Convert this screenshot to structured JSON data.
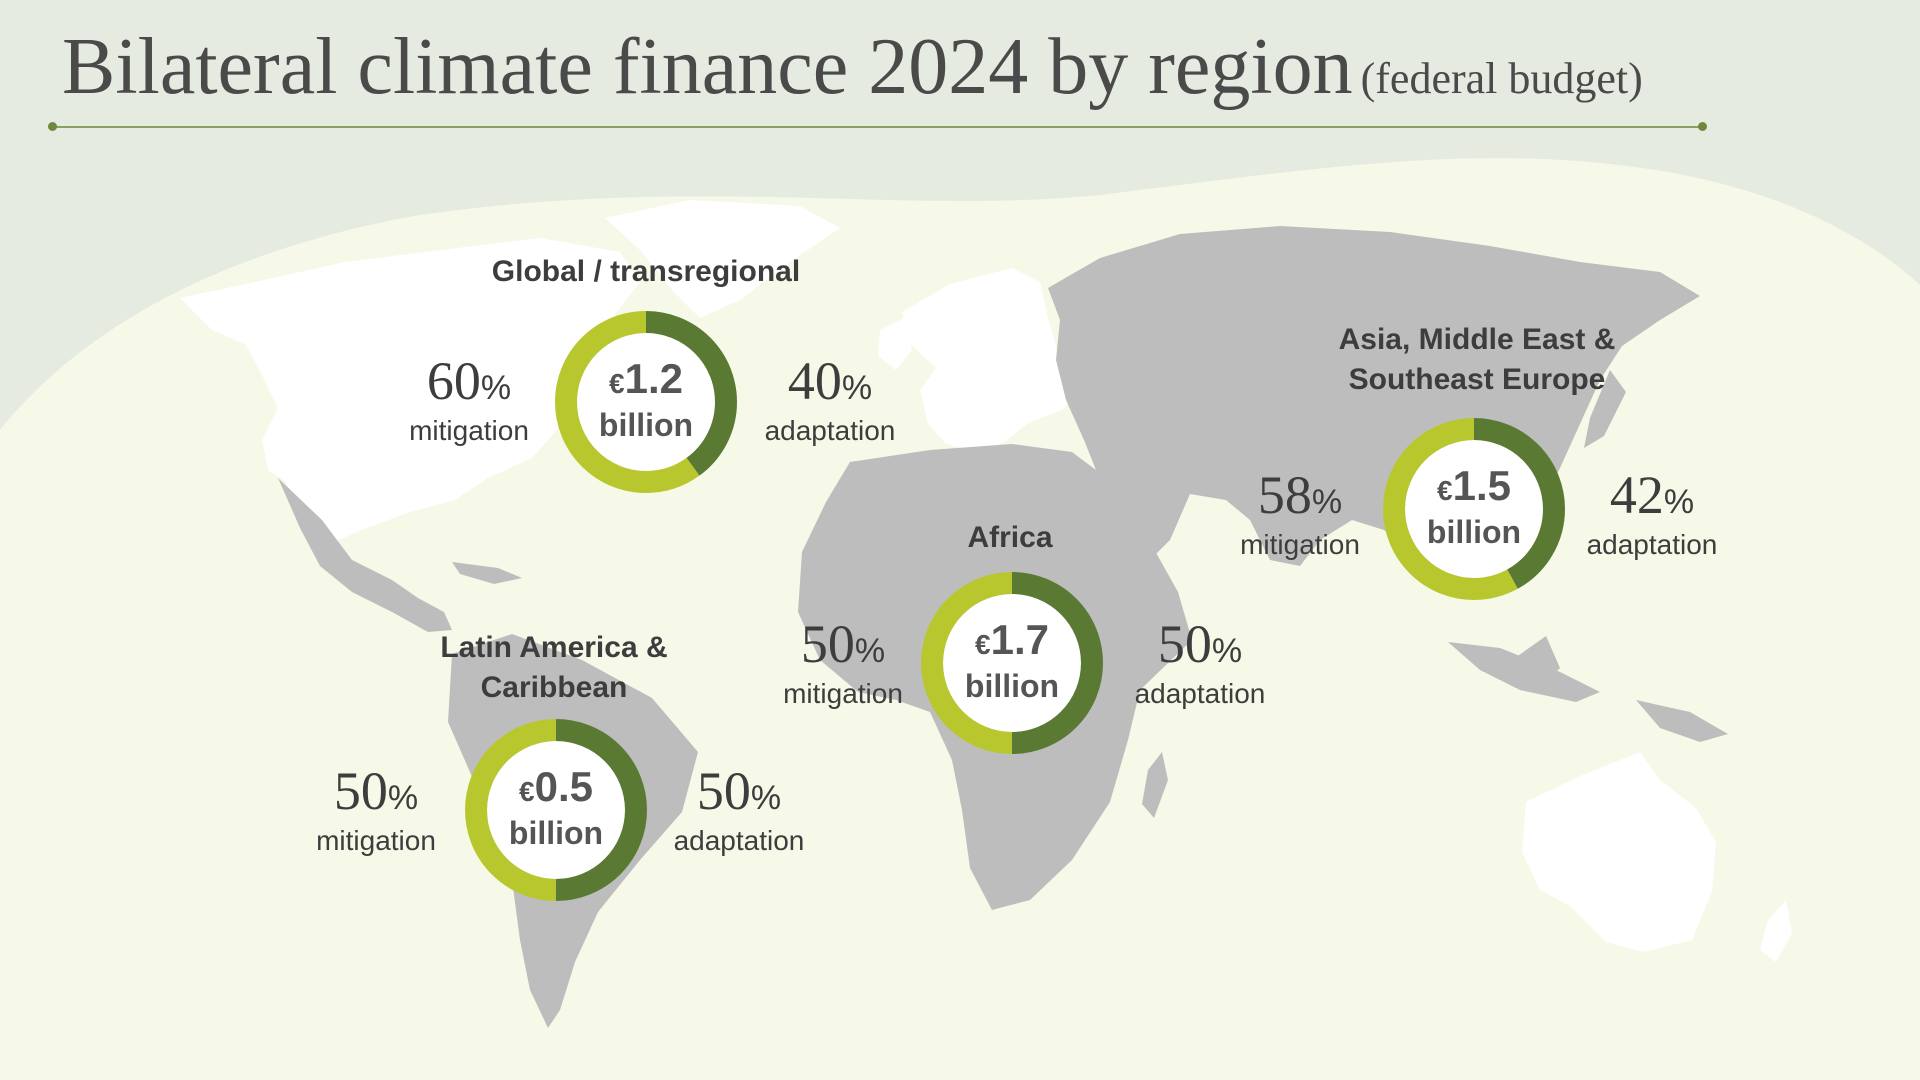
{
  "title": {
    "main": "Bilateral climate finance 2024 by region",
    "sub": "(federal budget)"
  },
  "colors": {
    "mitigation": "#b9c72e",
    "adaptation": "#5a7a34",
    "land_highlight": "#bdbdbd",
    "land_other": "#ffffff",
    "backdrop": "#f6f8e8",
    "outer_background": "#e6ebe2"
  },
  "currency_symbol": "€",
  "amount_unit": "billion",
  "mitigation_label": "mitigation",
  "adaptation_label": "adaptation",
  "percent_symbol": "%",
  "chart_data": {
    "type": "pie",
    "title": "Bilateral climate finance 2024 by region (federal budget)",
    "unit": "billion EUR",
    "regions": [
      {
        "name_lines": [
          "Global / transregional"
        ],
        "total": 1.2,
        "total_label": "1.2",
        "mitigation_pct": 60,
        "adaptation_pct": 40
      },
      {
        "name_lines": [
          "Asia, Middle East &",
          "Southeast Europe"
        ],
        "total": 1.5,
        "total_label": "1.5",
        "mitigation_pct": 58,
        "adaptation_pct": 42
      },
      {
        "name_lines": [
          "Africa"
        ],
        "total": 1.7,
        "total_label": "1.7",
        "mitigation_pct": 50,
        "adaptation_pct": 50
      },
      {
        "name_lines": [
          "Latin America &",
          "Caribbean"
        ],
        "total": 0.5,
        "total_label": "0.5",
        "mitigation_pct": 50,
        "adaptation_pct": 50
      }
    ]
  }
}
